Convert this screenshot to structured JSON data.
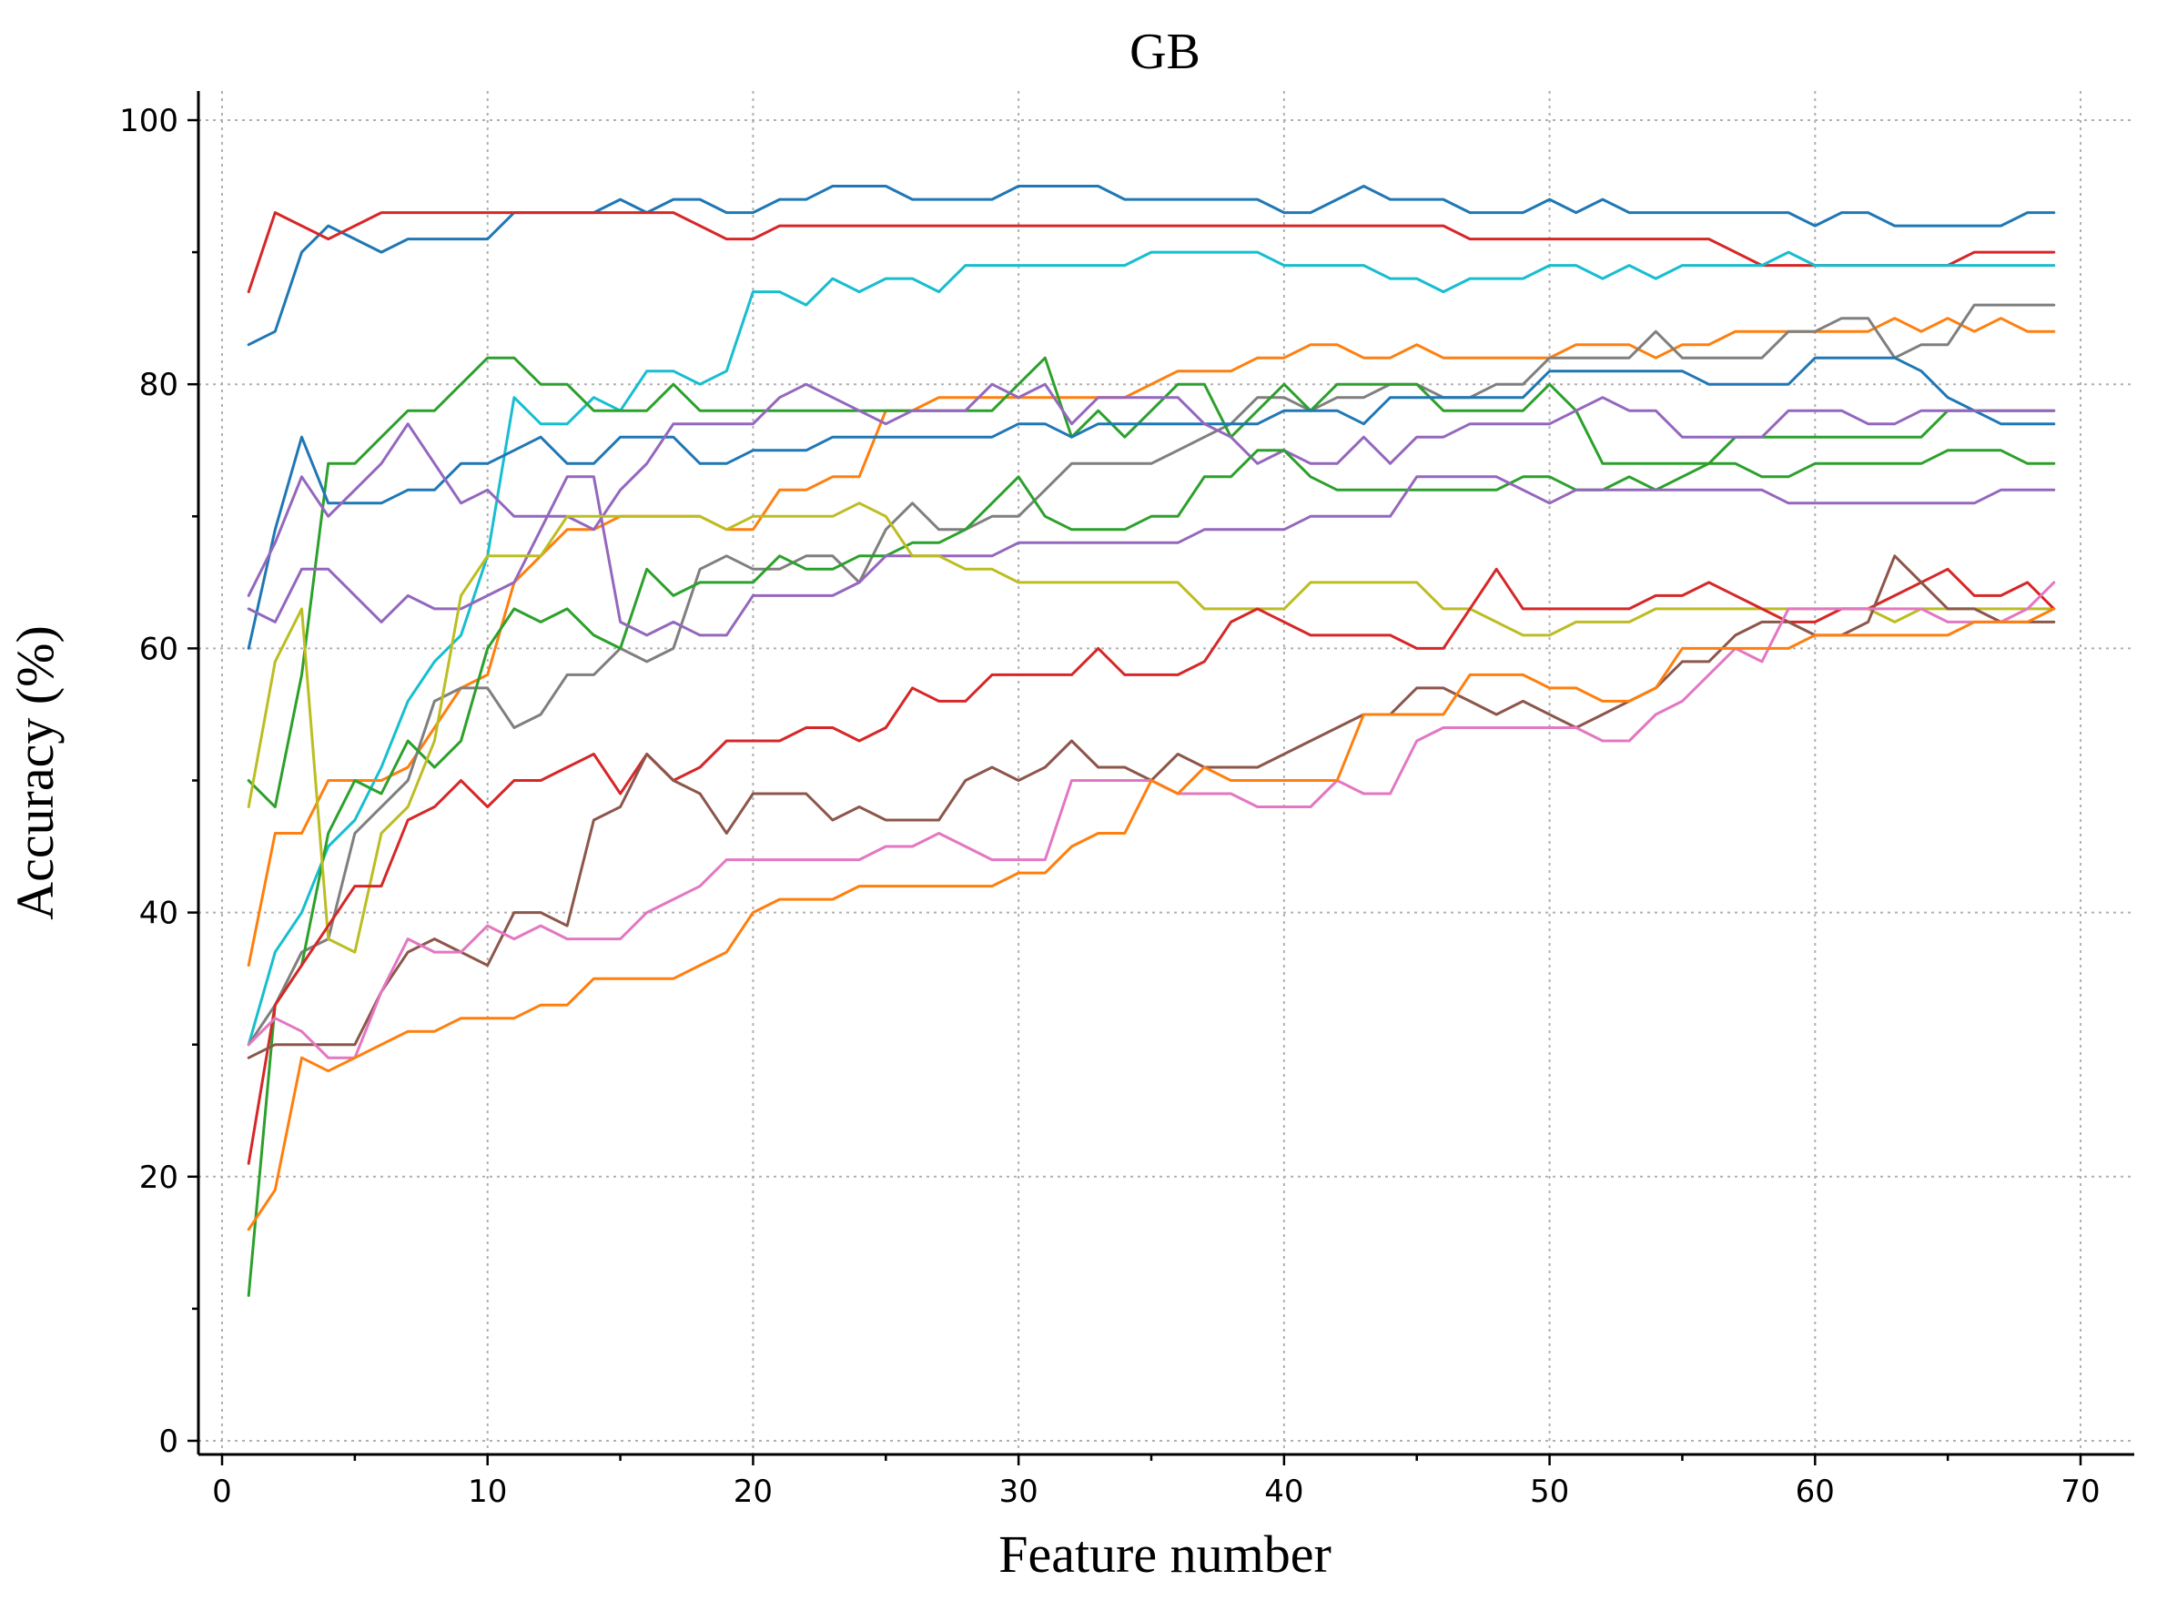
{
  "chart_data": {
    "type": "line",
    "title": "GB",
    "xlabel": "Feature number",
    "ylabel": "Accuracy (%)",
    "xlim": [
      -1,
      72
    ],
    "ylim": [
      -1,
      102
    ],
    "xticks": [
      0,
      10,
      20,
      30,
      40,
      50,
      60,
      70
    ],
    "yticks": [
      0,
      20,
      40,
      60,
      80,
      100
    ],
    "grid": true,
    "legend": "none",
    "x": [
      1,
      2,
      3,
      4,
      5,
      6,
      7,
      8,
      9,
      10,
      11,
      12,
      13,
      14,
      15,
      16,
      17,
      18,
      19,
      20,
      21,
      22,
      23,
      24,
      25,
      26,
      27,
      28,
      29,
      30,
      31,
      32,
      33,
      34,
      35,
      36,
      37,
      38,
      39,
      40,
      41,
      42,
      43,
      44,
      45,
      46,
      47,
      48,
      49,
      50,
      51,
      52,
      53,
      54,
      55,
      56,
      57,
      58,
      59,
      60,
      61,
      62,
      63,
      64,
      65,
      66,
      67,
      68,
      69
    ],
    "series": [
      {
        "color": "#1f77b4",
        "values": [
          83,
          84,
          90,
          92,
          91,
          90,
          91,
          91,
          91,
          91,
          93,
          93,
          93,
          93,
          94,
          93,
          94,
          94,
          93,
          93,
          94,
          94,
          95,
          95,
          95,
          94,
          94,
          94,
          94,
          95,
          95,
          95,
          95,
          94,
          94,
          94,
          94,
          94,
          94,
          93,
          93,
          94,
          95,
          94,
          94,
          94,
          93,
          93,
          93,
          94,
          93,
          94,
          93,
          93,
          93,
          93,
          93,
          93,
          93,
          92,
          93,
          93,
          92,
          92,
          92,
          92,
          92,
          93,
          93
        ]
      },
      {
        "color": "#d62728",
        "values": [
          87,
          93,
          92,
          91,
          92,
          93,
          93,
          93,
          93,
          93,
          93,
          93,
          93,
          93,
          93,
          93,
          93,
          92,
          91,
          91,
          92,
          92,
          92,
          92,
          92,
          92,
          92,
          92,
          92,
          92,
          92,
          92,
          92,
          92,
          92,
          92,
          92,
          92,
          92,
          92,
          92,
          92,
          92,
          92,
          92,
          92,
          91,
          91,
          91,
          91,
          91,
          91,
          91,
          91,
          91,
          91,
          90,
          89,
          89,
          89,
          89,
          89,
          89,
          89,
          89,
          90,
          90,
          90,
          90
        ]
      },
      {
        "color": "#17becf",
        "values": [
          30,
          37,
          40,
          45,
          47,
          51,
          56,
          59,
          61,
          67,
          79,
          77,
          77,
          79,
          78,
          81,
          81,
          80,
          81,
          87,
          87,
          86,
          88,
          87,
          88,
          88,
          87,
          89,
          89,
          89,
          89,
          89,
          89,
          89,
          90,
          90,
          90,
          90,
          90,
          89,
          89,
          89,
          89,
          88,
          88,
          87,
          88,
          88,
          88,
          89,
          89,
          88,
          89,
          88,
          89,
          89,
          89,
          89,
          90,
          89,
          89,
          89,
          89,
          89,
          89,
          89,
          89,
          89,
          89
        ]
      },
      {
        "color": "#ff7f0e",
        "values": [
          36,
          46,
          46,
          50,
          50,
          50,
          51,
          54,
          57,
          58,
          65,
          67,
          69,
          69,
          70,
          70,
          70,
          70,
          69,
          69,
          72,
          72,
          73,
          73,
          78,
          78,
          79,
          79,
          79,
          79,
          79,
          79,
          79,
          79,
          80,
          81,
          81,
          81,
          82,
          82,
          83,
          83,
          82,
          82,
          83,
          82,
          82,
          82,
          82,
          82,
          83,
          83,
          83,
          82,
          83,
          83,
          84,
          84,
          84,
          84,
          84,
          84,
          85,
          84,
          85,
          84,
          85,
          84,
          84
        ]
      },
      {
        "color": "#7f7f7f",
        "values": [
          30,
          33,
          37,
          38,
          46,
          48,
          50,
          56,
          57,
          57,
          54,
          55,
          58,
          58,
          60,
          59,
          60,
          66,
          67,
          66,
          66,
          67,
          67,
          65,
          69,
          71,
          69,
          69,
          70,
          70,
          72,
          74,
          74,
          74,
          74,
          75,
          76,
          77,
          79,
          79,
          78,
          79,
          79,
          80,
          80,
          79,
          79,
          80,
          80,
          82,
          82,
          82,
          82,
          84,
          82,
          82,
          82,
          82,
          84,
          84,
          85,
          85,
          82,
          83,
          83,
          86,
          86,
          86,
          86
        ]
      },
      {
        "color": "#2ca02c",
        "values": [
          50,
          48,
          58,
          74,
          74,
          76,
          78,
          78,
          80,
          82,
          82,
          80,
          80,
          78,
          78,
          78,
          80,
          78,
          78,
          78,
          78,
          78,
          78,
          78,
          78,
          78,
          78,
          78,
          78,
          80,
          82,
          76,
          78,
          76,
          78,
          80,
          80,
          76,
          78,
          80,
          78,
          80,
          80,
          80,
          80,
          78,
          78,
          78,
          78,
          80,
          78,
          74,
          74,
          74,
          74,
          74,
          76,
          76,
          76,
          76,
          76,
          76,
          76,
          76,
          78,
          78,
          78,
          78,
          78
        ]
      },
      {
        "color": "#1f77b4",
        "values": [
          60,
          69,
          76,
          71,
          71,
          71,
          72,
          72,
          74,
          74,
          75,
          76,
          74,
          74,
          76,
          76,
          76,
          74,
          74,
          75,
          75,
          75,
          76,
          76,
          76,
          76,
          76,
          76,
          76,
          77,
          77,
          76,
          77,
          77,
          77,
          77,
          77,
          77,
          77,
          78,
          78,
          78,
          77,
          79,
          79,
          79,
          79,
          79,
          79,
          81,
          81,
          81,
          81,
          81,
          81,
          80,
          80,
          80,
          80,
          82,
          82,
          82,
          82,
          81,
          79,
          78,
          77,
          77,
          77
        ]
      },
      {
        "color": "#9467bd",
        "values": [
          64,
          68,
          73,
          70,
          72,
          74,
          77,
          74,
          71,
          72,
          70,
          70,
          70,
          69,
          72,
          74,
          77,
          77,
          77,
          77,
          79,
          80,
          79,
          78,
          77,
          78,
          78,
          78,
          80,
          79,
          80,
          77,
          79,
          79,
          79,
          79,
          77,
          76,
          74,
          75,
          74,
          74,
          76,
          74,
          76,
          76,
          77,
          77,
          77,
          77,
          78,
          79,
          78,
          78,
          76,
          76,
          76,
          76,
          78,
          78,
          78,
          77,
          77,
          78,
          78,
          78,
          78,
          78,
          78
        ]
      },
      {
        "color": "#2ca02c",
        "values": [
          11,
          33,
          36,
          46,
          50,
          49,
          53,
          51,
          53,
          60,
          63,
          62,
          63,
          61,
          60,
          66,
          64,
          65,
          65,
          65,
          67,
          66,
          66,
          67,
          67,
          68,
          68,
          69,
          71,
          73,
          70,
          69,
          69,
          69,
          70,
          70,
          73,
          73,
          75,
          75,
          73,
          72,
          72,
          72,
          72,
          72,
          72,
          72,
          73,
          73,
          72,
          72,
          73,
          72,
          73,
          74,
          74,
          73,
          73,
          74,
          74,
          74,
          74,
          74,
          75,
          75,
          75,
          74,
          74
        ]
      },
      {
        "color": "#9467bd",
        "values": [
          63,
          62,
          66,
          66,
          64,
          62,
          64,
          63,
          63,
          64,
          65,
          69,
          73,
          73,
          62,
          61,
          62,
          61,
          61,
          64,
          64,
          64,
          64,
          65,
          67,
          67,
          67,
          67,
          67,
          68,
          68,
          68,
          68,
          68,
          68,
          68,
          69,
          69,
          69,
          69,
          70,
          70,
          70,
          70,
          73,
          73,
          73,
          73,
          72,
          71,
          72,
          72,
          72,
          72,
          72,
          72,
          72,
          72,
          71,
          71,
          71,
          71,
          71,
          71,
          71,
          71,
          72,
          72,
          72
        ]
      },
      {
        "color": "#bcbd22",
        "values": [
          48,
          59,
          63,
          38,
          37,
          46,
          48,
          53,
          64,
          67,
          67,
          67,
          70,
          70,
          70,
          70,
          70,
          70,
          69,
          70,
          70,
          70,
          70,
          71,
          70,
          67,
          67,
          66,
          66,
          65,
          65,
          65,
          65,
          65,
          65,
          65,
          63,
          63,
          63,
          63,
          65,
          65,
          65,
          65,
          65,
          63,
          63,
          62,
          61,
          61,
          62,
          62,
          62,
          63,
          63,
          63,
          63,
          63,
          63,
          63,
          63,
          63,
          62,
          63,
          63,
          63,
          63,
          63,
          63
        ]
      },
      {
        "color": "#d62728",
        "values": [
          21,
          33,
          36,
          39,
          42,
          42,
          47,
          48,
          50,
          48,
          50,
          50,
          51,
          52,
          49,
          52,
          50,
          51,
          53,
          53,
          53,
          54,
          54,
          53,
          54,
          57,
          56,
          56,
          58,
          58,
          58,
          58,
          60,
          58,
          58,
          58,
          59,
          62,
          63,
          62,
          61,
          61,
          61,
          61,
          60,
          60,
          63,
          66,
          63,
          63,
          63,
          63,
          63,
          64,
          64,
          65,
          64,
          63,
          62,
          62,
          63,
          63,
          64,
          65,
          66,
          64,
          64,
          65,
          63
        ]
      },
      {
        "color": "#8c564b",
        "values": [
          29,
          30,
          30,
          30,
          30,
          34,
          37,
          38,
          37,
          36,
          40,
          40,
          39,
          47,
          48,
          52,
          50,
          49,
          46,
          49,
          49,
          49,
          47,
          48,
          47,
          47,
          47,
          50,
          51,
          50,
          51,
          53,
          51,
          51,
          50,
          52,
          51,
          51,
          51,
          52,
          53,
          54,
          55,
          55,
          57,
          57,
          56,
          55,
          56,
          55,
          54,
          55,
          56,
          57,
          59,
          59,
          61,
          62,
          62,
          61,
          61,
          62,
          67,
          65,
          63,
          63,
          62,
          62,
          62
        ]
      },
      {
        "color": "#e377c2",
        "values": [
          30,
          32,
          31,
          29,
          29,
          34,
          38,
          37,
          37,
          39,
          38,
          39,
          38,
          38,
          38,
          40,
          41,
          42,
          44,
          44,
          44,
          44,
          44,
          44,
          45,
          45,
          46,
          45,
          44,
          44,
          44,
          50,
          50,
          50,
          50,
          49,
          49,
          49,
          48,
          48,
          48,
          50,
          49,
          49,
          53,
          54,
          54,
          54,
          54,
          54,
          54,
          53,
          53,
          55,
          56,
          58,
          60,
          59,
          63,
          63,
          63,
          63,
          63,
          63,
          62,
          62,
          62,
          63,
          65
        ]
      },
      {
        "color": "#ff7f0e",
        "values": [
          16,
          19,
          29,
          28,
          29,
          30,
          31,
          31,
          32,
          32,
          32,
          33,
          33,
          35,
          35,
          35,
          35,
          36,
          37,
          40,
          41,
          41,
          41,
          42,
          42,
          42,
          42,
          42,
          42,
          43,
          43,
          45,
          46,
          46,
          50,
          49,
          51,
          50,
          50,
          50,
          50,
          50,
          55,
          55,
          55,
          55,
          58,
          58,
          58,
          57,
          57,
          56,
          56,
          57,
          60,
          60,
          60,
          60,
          60,
          61,
          61,
          61,
          61,
          61,
          61,
          62,
          62,
          62,
          63
        ]
      }
    ]
  }
}
